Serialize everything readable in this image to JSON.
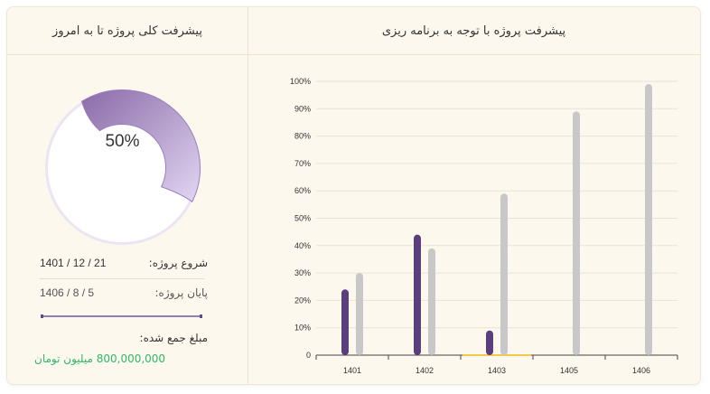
{
  "left_panel": {
    "title": "پیشرفت کلی پروژه تا به امروز",
    "progress_percent": 50,
    "progress_text": "50%",
    "start_label": "شروع پروژه:",
    "start_value": "1401 / 12 / 21",
    "end_label": "پایان پروژه:",
    "end_value": "1406 / 8 / 5",
    "collected_label": "مبلغ جمع شده:",
    "collected_value": "800,000,000 میلیون تومان"
  },
  "right_panel": {
    "title": "پیشرفت پروژه با توجه به برنامه ریزی"
  },
  "colors": {
    "actual": "#5a3f7f",
    "planned": "#c8c8c8",
    "highlight": "#f2c94c",
    "donut_dark": "#8a6aa8",
    "donut_light": "#d9c8ec"
  },
  "chart_data": {
    "type": "bar",
    "categories": [
      "1401",
      "1402",
      "1403",
      "1405",
      "1406"
    ],
    "series": [
      {
        "values": [
          24,
          44,
          9,
          null,
          null
        ]
      },
      {
        "values": [
          30,
          39,
          59,
          89,
          99
        ]
      }
    ],
    "y_ticks": [
      "0",
      "10%",
      "20%",
      "30%",
      "40%",
      "50%",
      "60%",
      "70%",
      "80%",
      "90%",
      "100%"
    ],
    "ylim": [
      0,
      100
    ],
    "grid": true,
    "highlight_category": "1403"
  }
}
